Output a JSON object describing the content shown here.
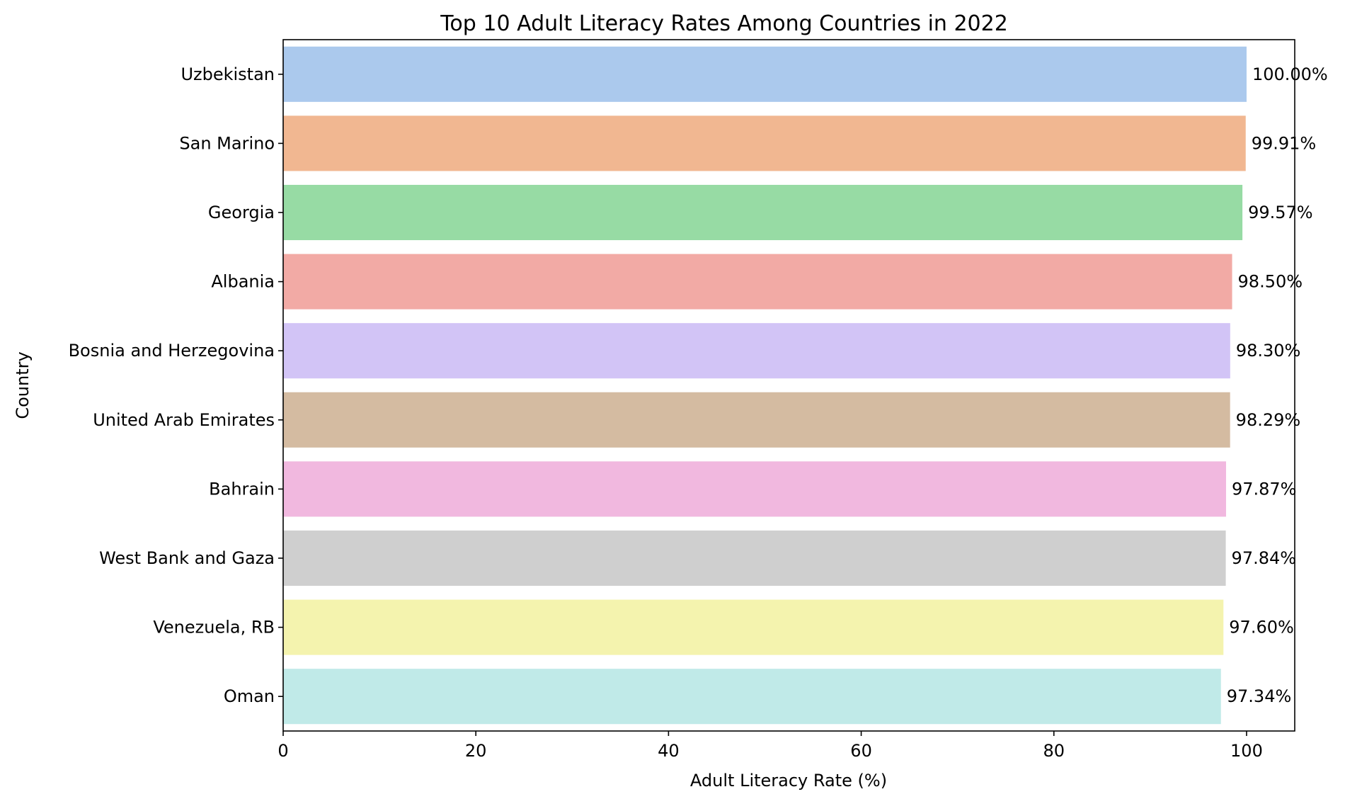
{
  "chart_data": {
    "type": "bar",
    "orientation": "horizontal",
    "title": "Top 10 Adult Literacy Rates Among Countries in 2022",
    "xlabel": "Adult Literacy Rate (%)",
    "ylabel": "Country",
    "xlim": [
      0,
      105
    ],
    "xticks": [
      0,
      20,
      40,
      60,
      80,
      100
    ],
    "grid": false,
    "categories": [
      "Uzbekistan",
      "San Marino",
      "Georgia",
      "Albania",
      "Bosnia and Herzegovina",
      "United Arab Emirates",
      "Bahrain",
      "West Bank and Gaza",
      "Venezuela, RB",
      "Oman"
    ],
    "values": [
      100.0,
      99.91,
      99.57,
      98.5,
      98.3,
      98.29,
      97.87,
      97.84,
      97.6,
      97.34
    ],
    "data_labels": [
      "100.00%",
      "99.91%",
      "99.57%",
      "98.50%",
      "98.30%",
      "98.29%",
      "97.87%",
      "97.84%",
      "97.60%",
      "97.34%"
    ],
    "colors": [
      "#abc9ed",
      "#f1b791",
      "#97dba4",
      "#f2aaa5",
      "#d2c4f6",
      "#d4bba1",
      "#f1b8df",
      "#cfcfcf",
      "#f4f3ae",
      "#c0eae8"
    ]
  }
}
